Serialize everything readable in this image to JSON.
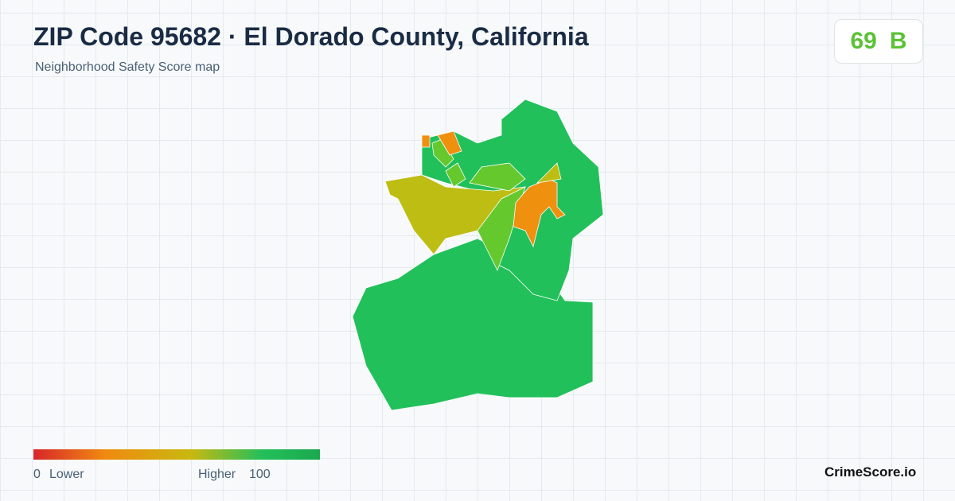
{
  "header": {
    "title": "ZIP Code 95682 · El Dorado County, California",
    "subtitle": "Neighborhood Safety Score map"
  },
  "badge": {
    "score": "69",
    "grade": "B"
  },
  "legend": {
    "min": "0",
    "min_label": "Lower",
    "max_label": "Higher",
    "max": "100"
  },
  "brand": "CrimeScore.io"
}
